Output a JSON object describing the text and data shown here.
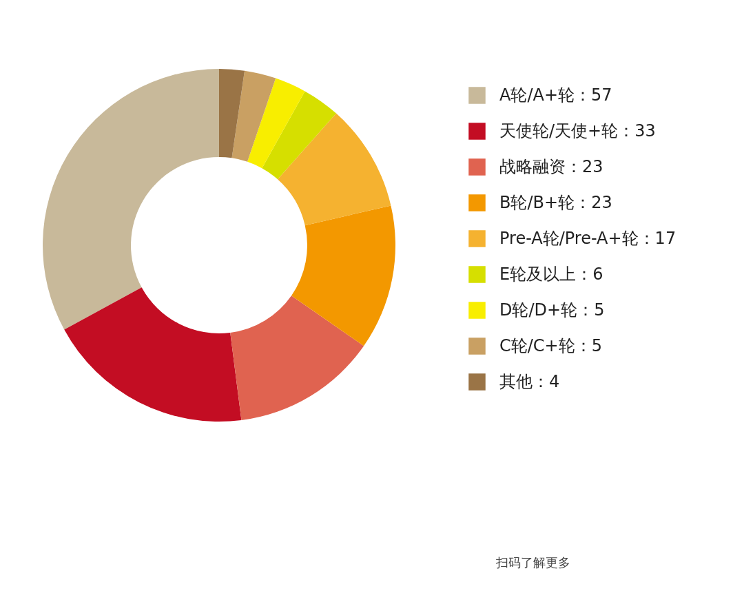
{
  "chart_data": {
    "type": "donut",
    "categories": [
      "A轮/A+轮：57",
      "天使轮/天使+轮：33",
      "战略融资：23",
      "B轮/B+轮：23",
      "Pre-A轮/Pre-A+轮：17",
      "E轮及以上：6",
      "D轮/D+轮：5",
      "C轮/C+轮：5",
      "其他：4"
    ],
    "values": [
      57,
      33,
      23,
      23,
      17,
      6,
      5,
      5,
      4
    ],
    "colors": [
      "#c8b99a",
      "#c30d23",
      "#e06350",
      "#f39800",
      "#f5b230",
      "#d6df00",
      "#f8ee00",
      "#c9a063",
      "#9a7446"
    ],
    "legend": "right",
    "annotations": [
      "扫码了解更多"
    ]
  }
}
